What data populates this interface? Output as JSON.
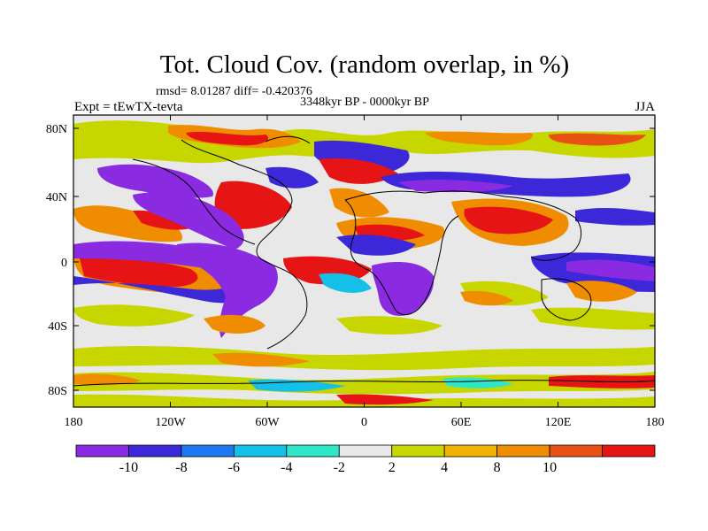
{
  "title": "Tot. Cloud Cov. (random overlap, in %)",
  "stats": "rmsd= 8.01287 diff= -0.420376",
  "period": "3348kyr BP - 0000kyr BP",
  "experiment": "Expt = tEwTX-tevta",
  "season": "JJA",
  "lat_ticks": [
    "80N",
    "40N",
    "0",
    "40S",
    "80S"
  ],
  "lon_ticks": [
    "180",
    "120W",
    "60W",
    "0",
    "60E",
    "120E",
    "180"
  ],
  "colorbar": {
    "colors": [
      "#8a2be2",
      "#3c28d8",
      "#1e78f0",
      "#14c0e8",
      "#30e6c8",
      "#e8e8e8",
      "#c8d600",
      "#f0b400",
      "#f08c00",
      "#e85014",
      "#e61414"
    ],
    "labels": [
      "-10",
      "-8",
      "-6",
      "-4",
      "-2",
      "2",
      "4",
      "8",
      "10"
    ]
  }
}
